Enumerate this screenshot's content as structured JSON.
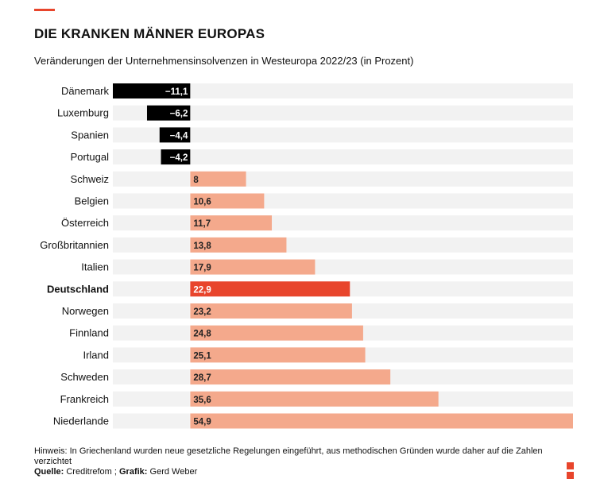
{
  "header": {
    "title": "DIE KRANKEN MÄNNER EUROPAS",
    "subtitle": "Veränderungen der Unternehmensinsolvenzen in Westeuropa 2022/23 (in Prozent)"
  },
  "footer": {
    "note": "Hinweis: In Griechenland wurden neue gesetzliche Regelungen eingeführt, aus methodischen Gründen wurde daher auf die Zahlen verzichtet",
    "source_label": "Quelle:",
    "source_value": "Creditrefom ;",
    "graphic_label": "Grafik:",
    "graphic_value": "Gerd Weber"
  },
  "colors": {
    "negative": "#000000",
    "positive": "#f4a98c",
    "highlight": "#e8452c",
    "track": "#f2f2f2"
  },
  "chart_data": {
    "type": "bar",
    "orientation": "horizontal",
    "title": "DIE KRANKEN MÄNNER EUROPAS",
    "subtitle": "Veränderungen der Unternehmensinsolvenzen in Westeuropa 2022/23 (in Prozent)",
    "categories": [
      "Dänemark",
      "Luxemburg",
      "Spanien",
      "Portugal",
      "Schweiz",
      "Belgien",
      "Österreich",
      "Großbritannien",
      "Italien",
      "Deutschland",
      "Norwegen",
      "Finnland",
      "Irland",
      "Schweden",
      "Frankreich",
      "Niederlande"
    ],
    "values": [
      -11.1,
      -6.2,
      -4.4,
      -4.2,
      8,
      10.6,
      11.7,
      13.8,
      17.9,
      22.9,
      23.2,
      24.8,
      25.1,
      28.7,
      35.6,
      54.9
    ],
    "value_labels": [
      "−11,1",
      "−6,2",
      "−4,4",
      "−4,2",
      "8",
      "10,6",
      "11,7",
      "13,8",
      "17,9",
      "22,9",
      "23,2",
      "24,8",
      "25,1",
      "28,7",
      "35,6",
      "54,9"
    ],
    "highlight": "Deutschland",
    "xlim": [
      -11.1,
      54.9
    ],
    "grid": false,
    "legend": "none"
  }
}
